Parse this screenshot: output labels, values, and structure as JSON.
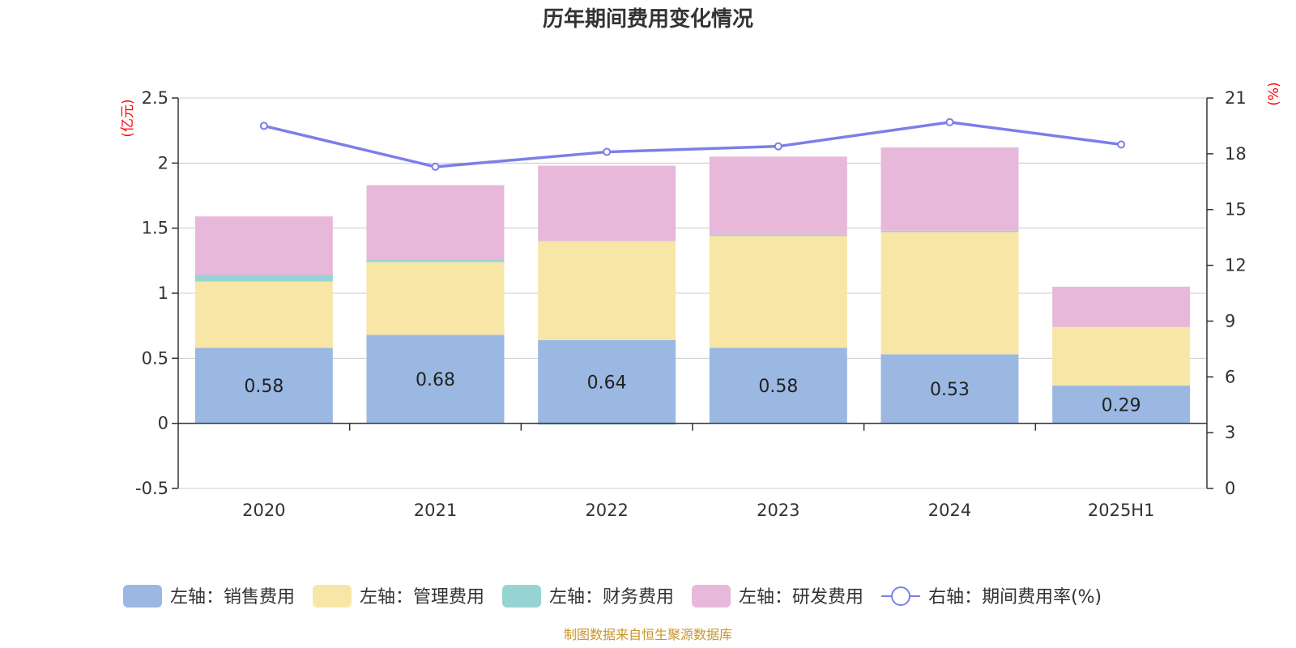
{
  "chart_data": {
    "type": "bar",
    "title": "历年期间费用变化情况",
    "categories": [
      "2020",
      "2021",
      "2022",
      "2023",
      "2024",
      "2025H1"
    ],
    "left_axis": {
      "unit": "(亿元)",
      "ylim": [
        -0.5,
        2.5
      ],
      "ticks": [
        "-0.5",
        "0",
        "0.5",
        "1",
        "1.5",
        "2",
        "2.5"
      ]
    },
    "right_axis": {
      "unit": "(%)",
      "ylim": [
        0,
        21
      ],
      "ticks": [
        "0",
        "3",
        "6",
        "9",
        "12",
        "15",
        "18",
        "21"
      ]
    },
    "series": [
      {
        "name": "左轴：销售费用",
        "type": "bar",
        "stack": true,
        "color": "#9bb8e3",
        "values": [
          0.58,
          0.68,
          0.64,
          0.58,
          0.53,
          0.29
        ],
        "labels": [
          "0.58",
          "0.68",
          "0.64",
          "0.58",
          "0.53",
          "0.29"
        ]
      },
      {
        "name": "左轴：管理费用",
        "type": "bar",
        "stack": true,
        "color": "#f8e6a6",
        "values": [
          0.51,
          0.56,
          0.76,
          0.86,
          0.94,
          0.45
        ]
      },
      {
        "name": "左轴：财务费用",
        "type": "bar",
        "stack": true,
        "color": "#96d4d4",
        "values": [
          0.05,
          0.02,
          -0.01,
          0.01,
          0.01,
          0.0
        ]
      },
      {
        "name": "左轴：研发费用",
        "type": "bar",
        "stack": true,
        "color": "#e7b8d9",
        "values": [
          0.45,
          0.57,
          0.58,
          0.6,
          0.64,
          0.31
        ]
      },
      {
        "name": "右轴：期间费用率(%)",
        "type": "line",
        "axis": "right",
        "color": "#7b7fe8",
        "values": [
          19.5,
          17.3,
          18.1,
          18.4,
          19.7,
          18.5
        ]
      }
    ],
    "legend_position": "bottom",
    "grid": true
  },
  "footer": {
    "source": "制图数据来自恒生聚源数据库"
  }
}
